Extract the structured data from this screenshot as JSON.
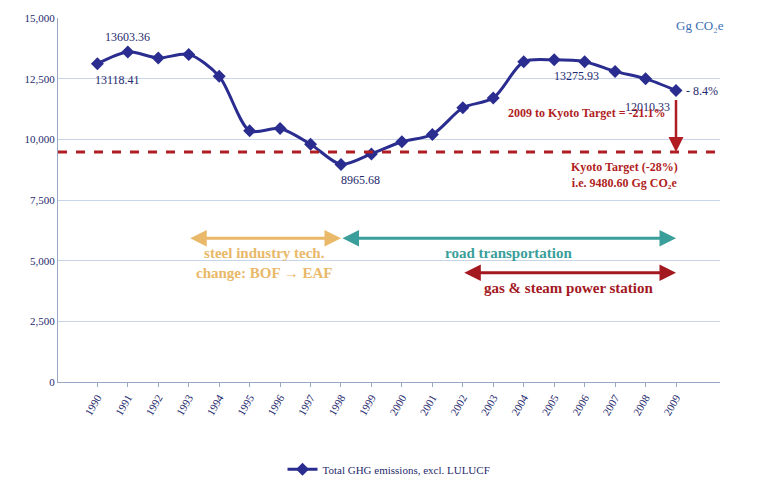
{
  "chart_data": {
    "type": "line",
    "unit": "Gg CO₂e",
    "categories": [
      "1990",
      "1991",
      "1992",
      "1993",
      "1994",
      "1995",
      "1996",
      "1997",
      "1998",
      "1999",
      "2000",
      "2001",
      "2002",
      "2003",
      "2004",
      "2005",
      "2006",
      "2007",
      "2008",
      "2009"
    ],
    "series": [
      {
        "name": "Total GHG emissions, excl. LULUCF",
        "color": "#2a2d8f",
        "marker": "diamond",
        "line_style": "solid",
        "values": [
          13118.41,
          13603.36,
          13350,
          13500,
          12600,
          10350,
          10450,
          9800,
          8965.68,
          9400,
          9900,
          10200,
          11300,
          11700,
          13200,
          13275.93,
          13200,
          12800,
          12500,
          12010.33
        ],
        "value_labels": [
          "13118.41",
          "13603.36",
          null,
          null,
          null,
          null,
          null,
          null,
          "8965.68",
          null,
          null,
          null,
          null,
          null,
          null,
          "13275.93",
          null,
          null,
          null,
          "12010.33"
        ]
      }
    ],
    "data_labels": true,
    "ylim": [
      0,
      15000
    ],
    "yticks": [
      0,
      {
        "value": 2500,
        "label": "2,500"
      },
      {
        "value": 5000,
        "label": "5,000"
      },
      {
        "value": 7500,
        "label": "7,500"
      },
      {
        "value": 10000,
        "label": "10,000"
      },
      {
        "value": 12500,
        "label": "12,500"
      },
      {
        "value": 15000,
        "label": "15,000"
      }
    ],
    "grid": true,
    "legend": "bottom",
    "change_label": "- 8.4%",
    "reference_line": {
      "value": 9480.6,
      "color": "#b01e23",
      "line_style": "dash",
      "label": [
        "Kyoto Target (-28%)",
        "i.e. 9480.60 Gg CO₂e"
      ]
    },
    "target_gap": {
      "text": "2009 to Kyoto Target = -21.1%",
      "color": "#b01e23"
    },
    "spans": [
      {
        "text": [
          "steel industry tech.",
          "change: BOF → EAF"
        ],
        "from": "1993",
        "to": "1998",
        "color": "#e9b868"
      },
      {
        "text": [
          "road transportation"
        ],
        "from": "1998",
        "to": "2009",
        "color": "#3a9e9a"
      },
      {
        "text": [
          "gas & steam power station"
        ],
        "from": "2002",
        "to": "2009",
        "color": "#a3191f"
      }
    ]
  }
}
